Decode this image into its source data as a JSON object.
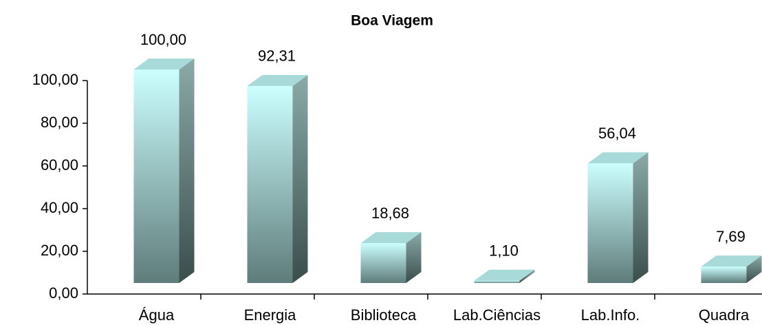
{
  "chart_data": {
    "type": "bar3d",
    "title": "Boa Viagem",
    "categories": [
      "Água",
      "Energia",
      "Biblioteca",
      "Lab.Ciências",
      "Lab.Info.",
      "Quadra"
    ],
    "values": [
      100.0,
      92.31,
      18.68,
      1.1,
      56.04,
      7.69
    ],
    "value_labels": [
      "100,00",
      "92,31",
      "18,68",
      "1,10",
      "56,04",
      "7,69"
    ],
    "ylim": [
      0,
      100
    ],
    "yticks": [
      {
        "value": 0,
        "label": "0,00"
      },
      {
        "value": 20,
        "label": "20,00"
      },
      {
        "value": 40,
        "label": "40,00"
      },
      {
        "value": 60,
        "label": "60,00"
      },
      {
        "value": 80,
        "label": "80,00"
      },
      {
        "value": 100,
        "label": "100,00"
      }
    ],
    "grid": false
  }
}
